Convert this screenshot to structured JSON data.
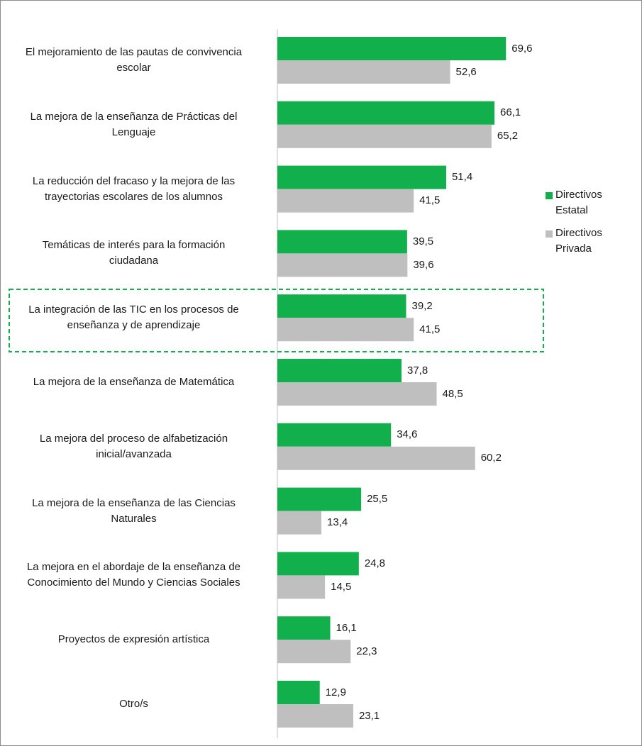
{
  "chart_data": {
    "type": "hbar",
    "categories": [
      "El mejoramiento de las pautas de convivencia\nescolar",
      "La mejora de la enseñanza de  Prácticas del\nLenguaje",
      "La reducción del fracaso y la mejora de las\ntrayectorias escolares de los alumnos",
      "Temáticas de interés para la formación\nciudadana",
      "La integración de las TIC en los procesos de\nenseñanza y de aprendizaje",
      "La mejora de la enseñanza de Matemática",
      "La mejora del proceso de alfabetización\ninicial/avanzada",
      "La mejora de la enseñanza de las Ciencias\nNaturales",
      "La mejora en el abordaje de la enseñanza de\nConocimiento del Mundo y Ciencias Sociales",
      "Proyectos de expresión artística",
      "Otro/s"
    ],
    "series": [
      {
        "name": "Directivos\nEstatal",
        "color": "#12b04c",
        "values": [
          69.6,
          66.1,
          51.4,
          39.5,
          39.2,
          37.8,
          34.6,
          25.5,
          24.8,
          16.1,
          12.9
        ],
        "value_labels": [
          "69,6",
          "66,1",
          "51,4",
          "39,5",
          "39,2",
          "37,8",
          "34,6",
          "25,5",
          "24,8",
          "16,1",
          "12,9"
        ]
      },
      {
        "name": "Directivos\nPrivada",
        "color": "#bfbfbf",
        "values": [
          52.6,
          65.2,
          41.5,
          39.6,
          41.5,
          48.5,
          60.2,
          13.4,
          14.5,
          22.3,
          23.1
        ],
        "value_labels": [
          "52,6",
          "65,2",
          "41,5",
          "39,6",
          "41,5",
          "48,5",
          "60,2",
          "13,4",
          "14,5",
          "22,3",
          "23,1"
        ]
      }
    ],
    "xlim": [
      0,
      100
    ]
  }
}
